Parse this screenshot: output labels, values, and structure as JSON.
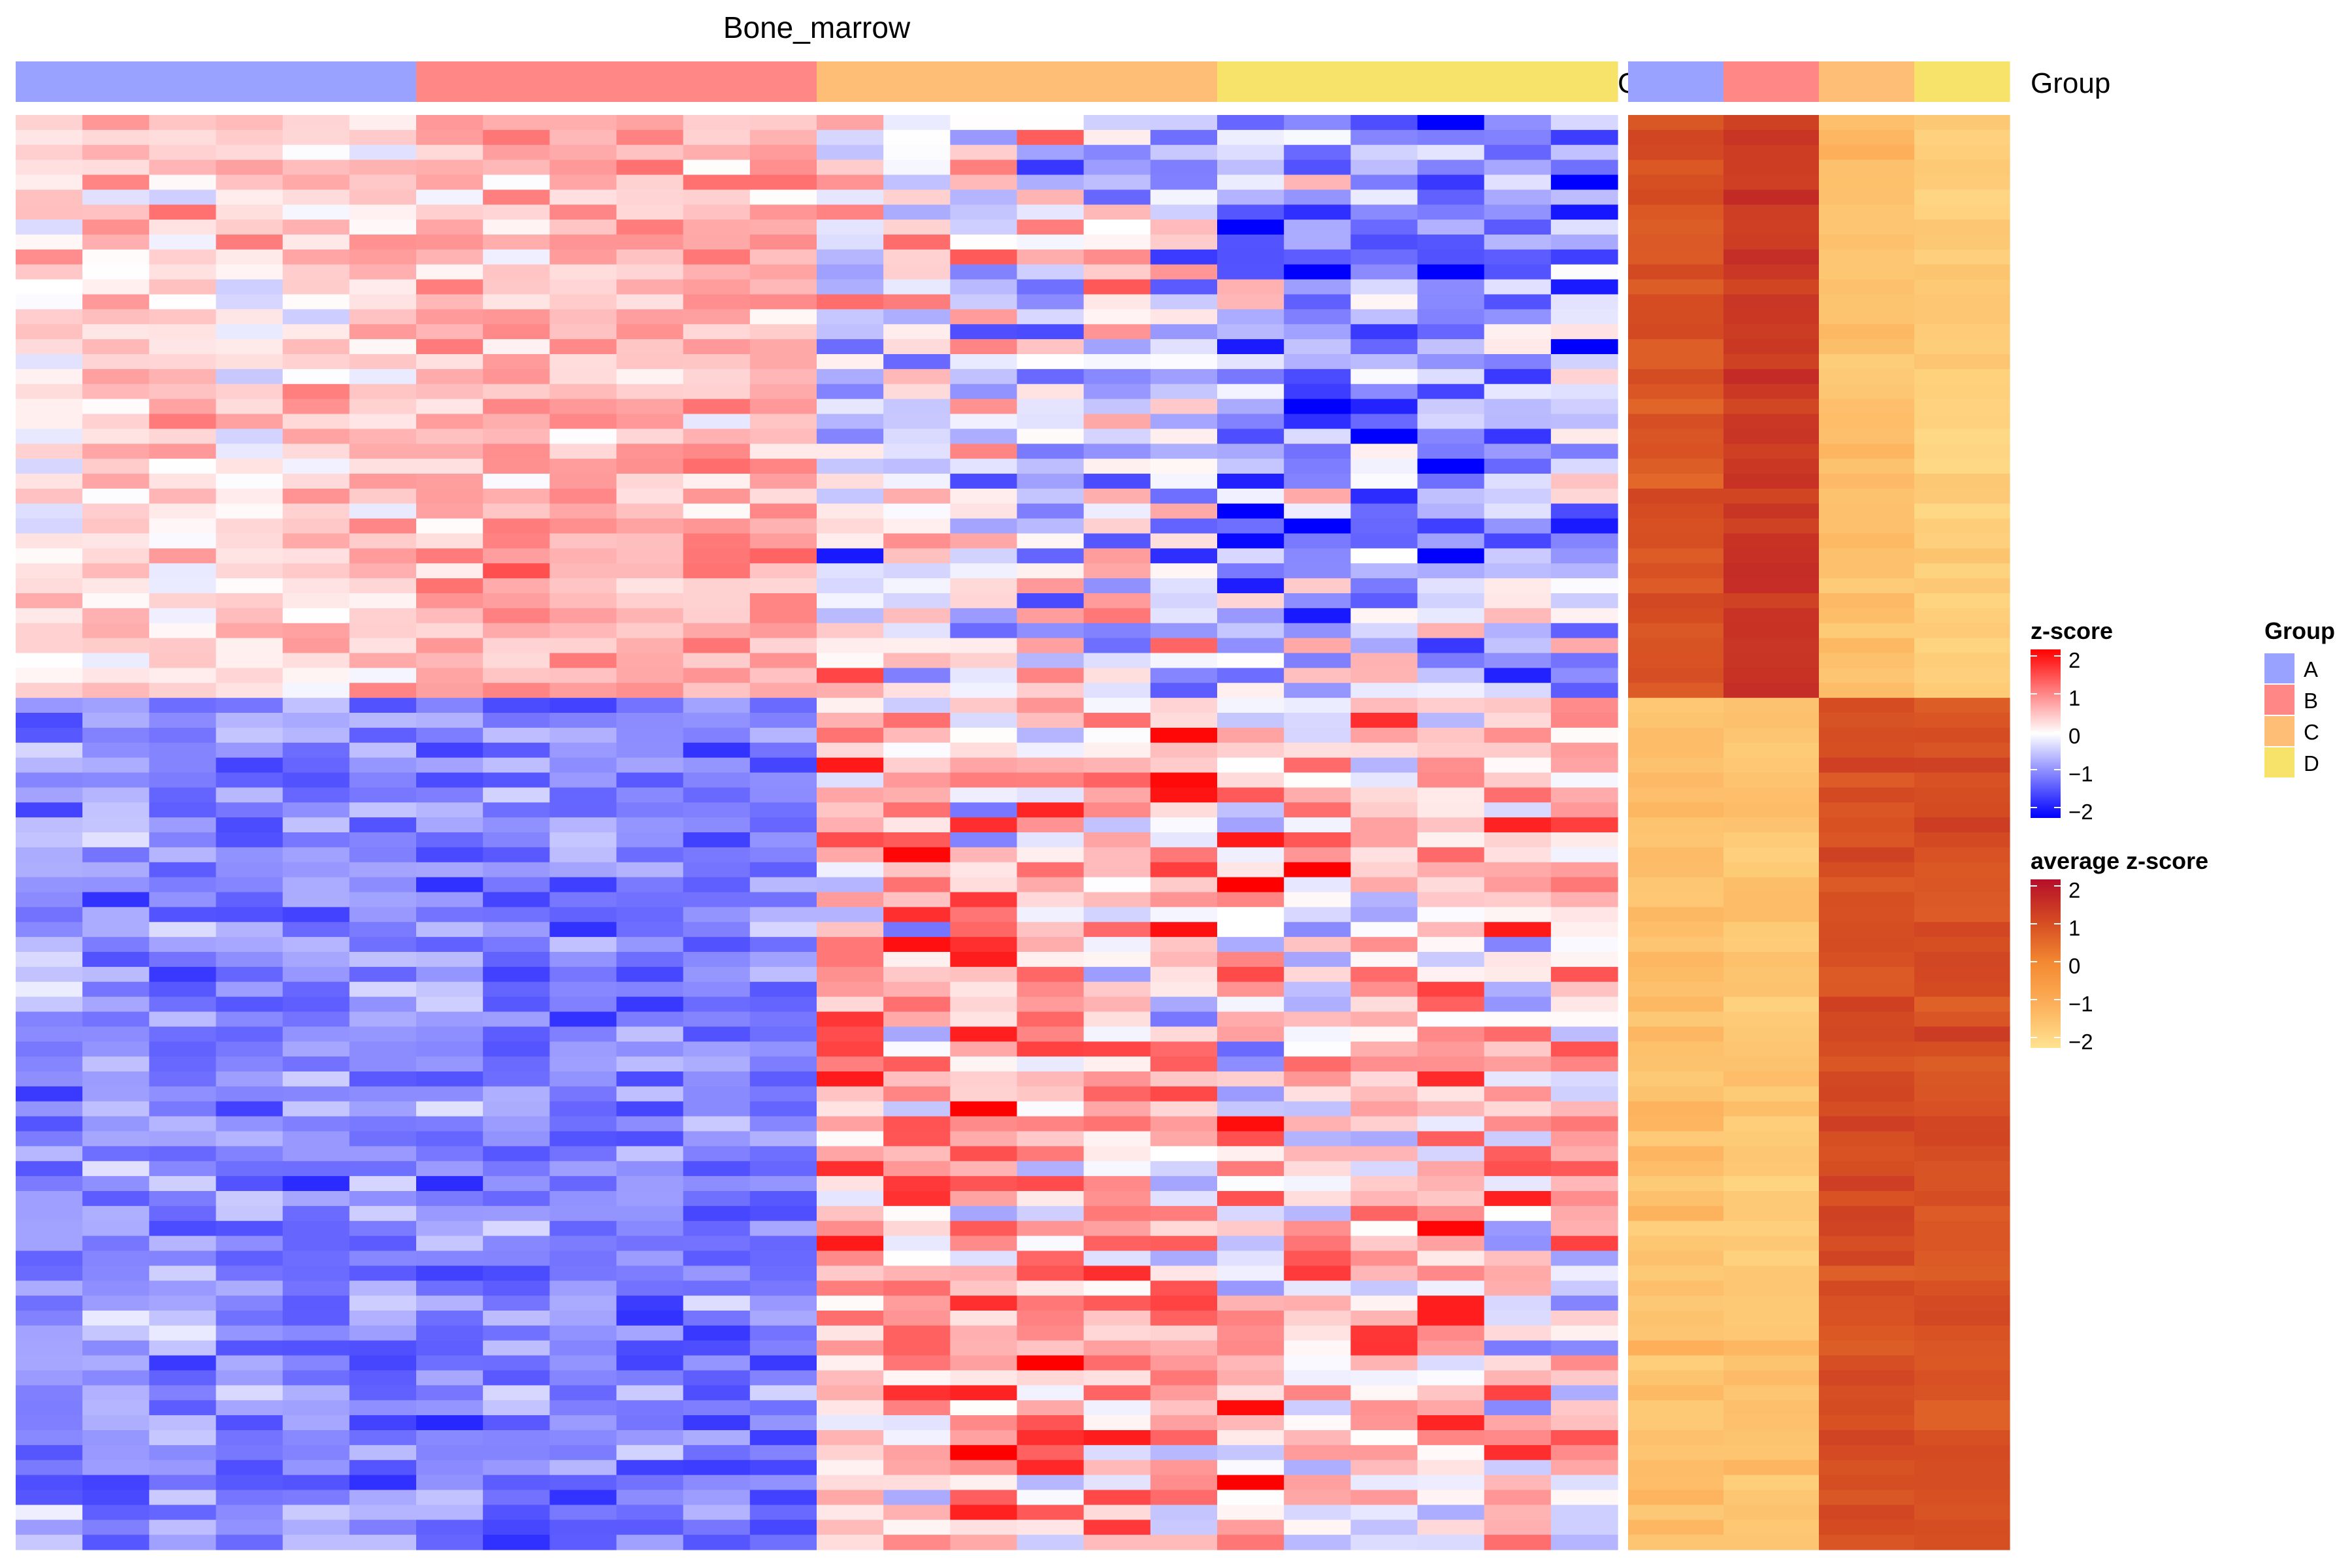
{
  "chart_data": {
    "type": "heatmap",
    "title": "Bone_marrow",
    "main_heatmap": {
      "n_rows": 96,
      "n_columns": 24,
      "column_groups": [
        "A",
        "A",
        "A",
        "A",
        "A",
        "A",
        "B",
        "B",
        "B",
        "B",
        "B",
        "B",
        "C",
        "C",
        "C",
        "C",
        "C",
        "C",
        "D",
        "D",
        "D",
        "D",
        "D",
        "D"
      ],
      "row_clusters": [
        {
          "rows": 39,
          "mean_by_group": {
            "A": 0.3,
            "B": 0.6,
            "C": -0.2,
            "D": -0.8
          }
        },
        {
          "rows": 57,
          "mean_by_group": {
            "A": -0.9,
            "B": -1.0,
            "C": 0.6,
            "D": 0.5
          }
        }
      ],
      "color_scale": {
        "name": "z-score",
        "min": -2,
        "max": 2,
        "colors": [
          "#0000ff",
          "#ffffff",
          "#ff0000"
        ]
      }
    },
    "side_heatmap": {
      "n_rows": 96,
      "columns": [
        "A",
        "B",
        "C",
        "D"
      ],
      "cluster_means": [
        {
          "rows": 39,
          "values": {
            "A": 0.9,
            "B": 1.3,
            "C": -1.3,
            "D": -1.6
          }
        },
        {
          "rows": 57,
          "values": {
            "A": -1.3,
            "B": -1.4,
            "C": 0.9,
            "D": 0.9
          }
        }
      ],
      "color_scale": {
        "name": "average z-score",
        "min": -2,
        "max": 2,
        "colors": [
          "#fee391",
          "#fdb15c",
          "#f48a32",
          "#d44b22",
          "#b50e2a"
        ]
      }
    },
    "annotation": {
      "name": "Group",
      "levels": [
        "A",
        "B",
        "C",
        "D"
      ],
      "colors": {
        "A": "#99a3ff",
        "B": "#ff8785",
        "C": "#ffbe76",
        "D": "#f8e36a"
      }
    },
    "legends": [
      {
        "title": "z-score",
        "ticks": [
          "2",
          "1",
          "0",
          "−1",
          "−2"
        ]
      },
      {
        "title": "average z-score",
        "ticks": [
          "2",
          "1",
          "0",
          "−1",
          "−2"
        ]
      },
      {
        "title": "Group",
        "entries": [
          "A",
          "B",
          "C",
          "D"
        ]
      }
    ],
    "side_annotation_label": "Group",
    "left_label_fragment": "G"
  }
}
